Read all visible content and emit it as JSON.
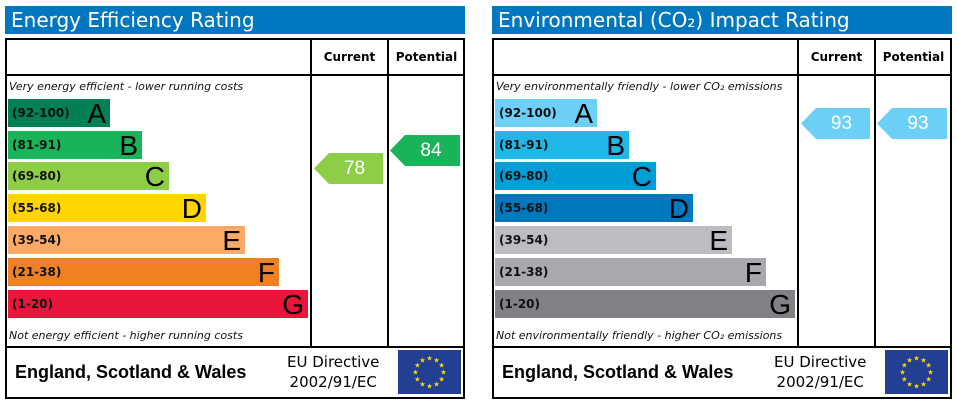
{
  "chart_data": [
    {
      "type": "bar",
      "title": "Energy Efficiency Rating",
      "columns": [
        "Current",
        "Potential"
      ],
      "top_note": "Very energy efficient - lower running costs",
      "bottom_note": "Not energy efficient - higher running costs",
      "bands": [
        {
          "range": "(92-100)",
          "letter": "A",
          "color": "#008054"
        },
        {
          "range": "(81-91)",
          "letter": "B",
          "color": "#19b459"
        },
        {
          "range": "(69-80)",
          "letter": "C",
          "color": "#8dce46"
        },
        {
          "range": "(55-68)",
          "letter": "D",
          "color": "#ffd500"
        },
        {
          "range": "(39-54)",
          "letter": "E",
          "color": "#fcaa65"
        },
        {
          "range": "(21-38)",
          "letter": "F",
          "color": "#ef8023"
        },
        {
          "range": "(1-20)",
          "letter": "G",
          "color": "#e9153b"
        }
      ],
      "current": {
        "value": 78,
        "label": "78",
        "color": "#8dce46"
      },
      "potential": {
        "value": 84,
        "label": "84",
        "color": "#19b459"
      },
      "region": "England, Scotland & Wales",
      "directive": [
        "EU Directive",
        "2002/91/EC"
      ]
    },
    {
      "type": "bar",
      "title": "Environmental (CO₂) Impact Rating",
      "columns": [
        "Current",
        "Potential"
      ],
      "top_note": "Very environmentally friendly - lower CO₂ emissions",
      "bottom_note": "Not environmentally friendly - higher CO₂ emissions",
      "bands": [
        {
          "range": "(92-100)",
          "letter": "A",
          "color": "#6ccff6"
        },
        {
          "range": "(81-91)",
          "letter": "B",
          "color": "#20b6e8"
        },
        {
          "range": "(69-80)",
          "letter": "C",
          "color": "#009ed6"
        },
        {
          "range": "(55-68)",
          "letter": "D",
          "color": "#0078be"
        },
        {
          "range": "(39-54)",
          "letter": "E",
          "color": "#bbbdc0"
        },
        {
          "range": "(21-38)",
          "letter": "F",
          "color": "#a7a9ac"
        },
        {
          "range": "(1-20)",
          "letter": "G",
          "color": "#808184"
        }
      ],
      "current": {
        "value": 93,
        "label": "93",
        "color": "#6ccff6"
      },
      "potential": {
        "value": 93,
        "label": "93",
        "color": "#6ccff6"
      },
      "region": "England, Scotland & Wales",
      "directive": [
        "EU Directive",
        "2002/91/EC"
      ]
    }
  ]
}
